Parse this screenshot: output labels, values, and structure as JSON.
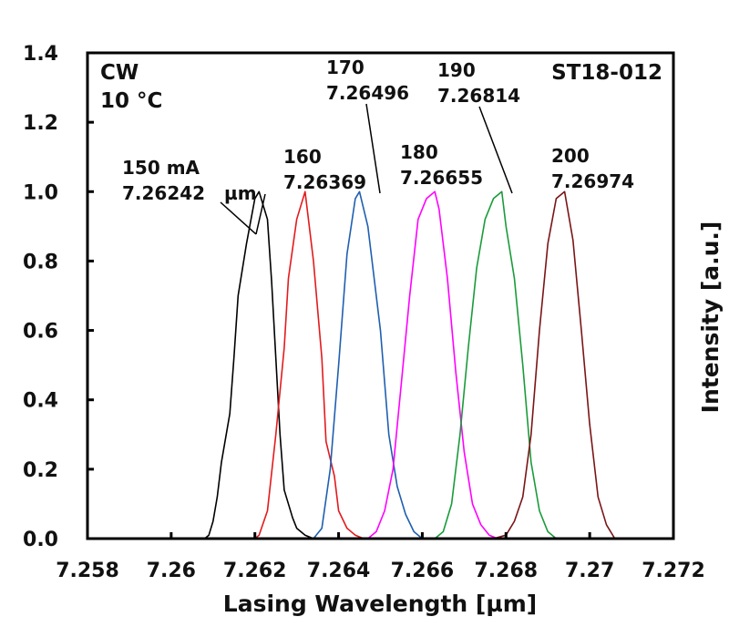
{
  "chart_data": {
    "type": "line",
    "title": "",
    "xlabel": "Lasing Wavelength [µm]",
    "ylabel": "Intensity [a.u.]",
    "xlim": [
      7.258,
      7.272
    ],
    "ylim": [
      0,
      1.4
    ],
    "x_ticks": [
      "7.258",
      "7.26",
      "7.262",
      "7.264",
      "7.266",
      "7.268",
      "7.27",
      "7.272"
    ],
    "y_ticks": [
      "0.0",
      "0.2",
      "0.4",
      "0.6",
      "0.8",
      "1.0",
      "1.2",
      "1.4"
    ],
    "grid": false,
    "corner_left": [
      "CW",
      "10 °C"
    ],
    "corner_right": "ST18-012",
    "series": [
      {
        "name": "150 mA",
        "peak_label": "7.26242",
        "color": "#000000",
        "x": [
          7.2605,
          7.2608,
          7.2609,
          7.261,
          7.2611,
          7.2612,
          7.2614,
          7.2615,
          7.2616,
          7.2618,
          7.262,
          7.2621,
          7.2623,
          7.2624,
          7.2625,
          7.2626,
          7.2627,
          7.2629,
          7.263,
          7.2632,
          7.2634
        ],
        "y": [
          0.0,
          0.0,
          0.01,
          0.05,
          0.12,
          0.22,
          0.36,
          0.52,
          0.7,
          0.85,
          0.98,
          1.0,
          0.92,
          0.74,
          0.52,
          0.3,
          0.14,
          0.06,
          0.03,
          0.01,
          0.0
        ]
      },
      {
        "name": "160",
        "peak_label": "7.26369",
        "color": "#e31a1c",
        "x": [
          7.262,
          7.2621,
          7.2623,
          7.2625,
          7.2627,
          7.2628,
          7.263,
          7.2632,
          7.2634,
          7.2636,
          7.2637,
          7.2639,
          7.264,
          7.2642,
          7.2644,
          7.2646
        ],
        "y": [
          0.0,
          0.01,
          0.08,
          0.3,
          0.55,
          0.75,
          0.92,
          1.0,
          0.8,
          0.52,
          0.28,
          0.18,
          0.08,
          0.03,
          0.01,
          0.0
        ]
      },
      {
        "name": "170",
        "peak_label": "7.26496",
        "color": "#1f5fb0",
        "x": [
          7.2632,
          7.2634,
          7.2636,
          7.2638,
          7.264,
          7.2642,
          7.2644,
          7.2645,
          7.2647,
          7.265,
          7.2652,
          7.2654,
          7.2656,
          7.2658,
          7.266
        ],
        "y": [
          0.0,
          0.0,
          0.03,
          0.2,
          0.5,
          0.82,
          0.98,
          1.0,
          0.9,
          0.6,
          0.3,
          0.15,
          0.07,
          0.02,
          0.0
        ]
      },
      {
        "name": "180",
        "peak_label": "7.26655",
        "color": "#ff00ff",
        "x": [
          7.2647,
          7.2649,
          7.2651,
          7.2653,
          7.2655,
          7.2657,
          7.2659,
          7.2661,
          7.2663,
          7.2664,
          7.2666,
          7.2668,
          7.267,
          7.2672,
          7.2674,
          7.2676,
          7.2678
        ],
        "y": [
          0.0,
          0.02,
          0.08,
          0.2,
          0.45,
          0.7,
          0.92,
          0.98,
          1.0,
          0.95,
          0.75,
          0.48,
          0.25,
          0.1,
          0.04,
          0.01,
          0.0
        ]
      },
      {
        "name": "190",
        "peak_label": "7.26814",
        "color": "#1a9b3a",
        "x": [
          7.2663,
          7.2665,
          7.2667,
          7.2669,
          7.2671,
          7.2673,
          7.2675,
          7.2677,
          7.2679,
          7.268,
          7.2682,
          7.2684,
          7.2686,
          7.2688,
          7.269,
          7.2692
        ],
        "y": [
          0.0,
          0.02,
          0.1,
          0.3,
          0.55,
          0.78,
          0.92,
          0.98,
          1.0,
          0.9,
          0.75,
          0.5,
          0.22,
          0.08,
          0.02,
          0.0
        ]
      },
      {
        "name": "200",
        "peak_label": "7.26974",
        "color": "#7a1416",
        "x": [
          7.2677,
          7.268,
          7.2682,
          7.2684,
          7.2686,
          7.2688,
          7.269,
          7.2692,
          7.2694,
          7.2696,
          7.2698,
          7.27,
          7.2702,
          7.2704,
          7.2706
        ],
        "y": [
          0.0,
          0.01,
          0.05,
          0.12,
          0.3,
          0.6,
          0.85,
          0.98,
          1.0,
          0.86,
          0.6,
          0.33,
          0.12,
          0.04,
          0.0
        ]
      }
    ]
  }
}
